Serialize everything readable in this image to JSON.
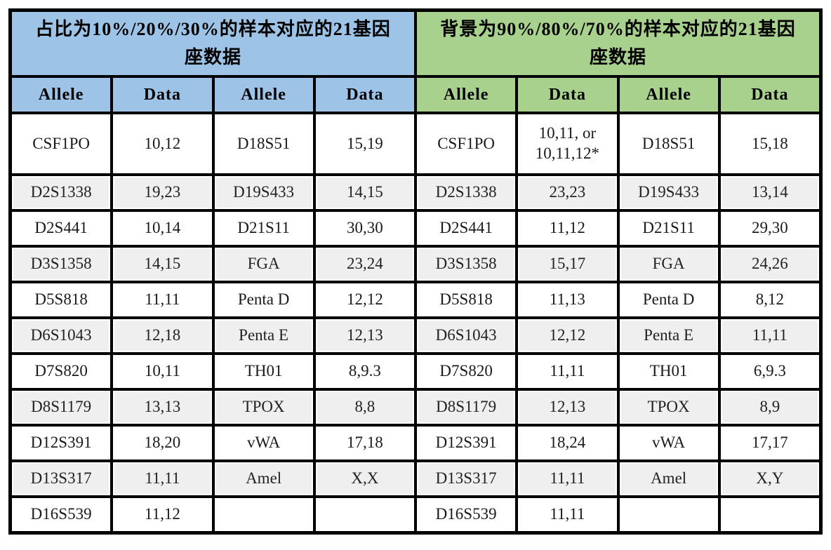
{
  "colors": {
    "left_header_bg": "#9DC3E6",
    "right_header_bg": "#A9D18E",
    "alt_row_bg": "#EFEFEF",
    "border": "#000000",
    "text": "#1A1A1A"
  },
  "tables": [
    {
      "title": "占比为10%/20%/30%的样本对应的21基因座数据",
      "columns": [
        "Allele",
        "Data",
        "Allele",
        "Data"
      ],
      "rows": [
        [
          "CSF1PO",
          "10,12",
          "D18S51",
          "15,19"
        ],
        [
          "D2S1338",
          "19,23",
          "D19S433",
          "14,15"
        ],
        [
          "D2S441",
          "10,14",
          "D21S11",
          "30,30"
        ],
        [
          "D3S1358",
          "14,15",
          "FGA",
          "23,24"
        ],
        [
          "D5S818",
          "11,11",
          "Penta D",
          "12,12"
        ],
        [
          "D6S1043",
          "12,18",
          "Penta E",
          "12,13"
        ],
        [
          "D7S820",
          "10,11",
          "TH01",
          "8,9.3"
        ],
        [
          "D8S1179",
          "13,13",
          "TPOX",
          "8,8"
        ],
        [
          "D12S391",
          "18,20",
          "vWA",
          "17,18"
        ],
        [
          "D13S317",
          "11,11",
          "Amel",
          "X,X"
        ],
        [
          "D16S539",
          "11,12",
          "",
          ""
        ]
      ]
    },
    {
      "title": "背景为90%/80%/70%的样本对应的21基因座数据",
      "columns": [
        "Allele",
        "Data",
        "Allele",
        "Data"
      ],
      "rows": [
        [
          "CSF1PO",
          "10,11, or\n10,11,12*",
          "D18S51",
          "15,18"
        ],
        [
          "D2S1338",
          "23,23",
          "D19S433",
          "13,14"
        ],
        [
          "D2S441",
          "11,12",
          "D21S11",
          "29,30"
        ],
        [
          "D3S1358",
          "15,17",
          "FGA",
          "24,26"
        ],
        [
          "D5S818",
          "11,13",
          "Penta D",
          "8,12"
        ],
        [
          "D6S1043",
          "12,12",
          "Penta E",
          "11,11"
        ],
        [
          "D7S820",
          "11,11",
          "TH01",
          "6,9.3"
        ],
        [
          "D8S1179",
          "12,13",
          "TPOX",
          "8,9"
        ],
        [
          "D12S391",
          "18,24",
          "vWA",
          "17,17"
        ],
        [
          "D13S317",
          "11,11",
          "Amel",
          "X,Y"
        ],
        [
          "D16S539",
          "11,11",
          "",
          ""
        ]
      ]
    }
  ]
}
